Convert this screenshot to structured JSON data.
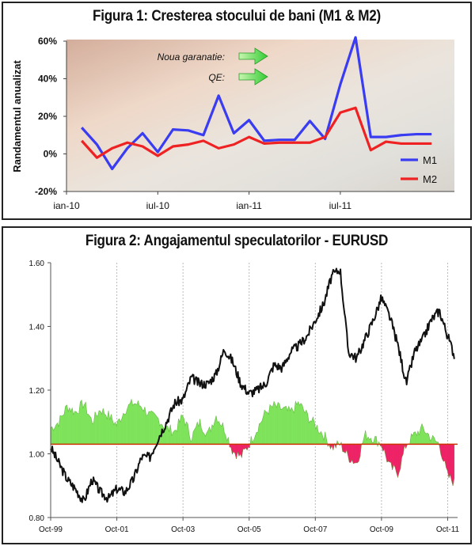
{
  "chart_data": [
    {
      "type": "line",
      "title": "Figura 1:  Cresterea stocului de bani (M1 & M2)",
      "ylabel": "Randamentul anualizat",
      "xlabel": "",
      "ylim": [
        -20,
        60
      ],
      "yticks": [
        "60%",
        "40%",
        "20%",
        "0%",
        "-20%"
      ],
      "ytick_values": [
        60,
        40,
        20,
        0,
        -20
      ],
      "xticks": [
        "ian-10",
        "iul-10",
        "ian-11",
        "iul-11"
      ],
      "xtick_values": [
        0,
        6,
        12,
        18
      ],
      "x": [
        1,
        2,
        3,
        4,
        5,
        6,
        7,
        8,
        9,
        10,
        11,
        12,
        13,
        14,
        15,
        16,
        17,
        18,
        19,
        20,
        21,
        22,
        23,
        24
      ],
      "series": [
        {
          "name": "M1",
          "color": "#3a3cf2",
          "values": [
            14,
            5,
            -8,
            3,
            11,
            1,
            13,
            12.5,
            10,
            31,
            11,
            18,
            7,
            7.5,
            7.5,
            17.5,
            8,
            37,
            62,
            9,
            9,
            10,
            10.5,
            10.5
          ]
        },
        {
          "name": "M2",
          "color": "#ee2222",
          "values": [
            7,
            -2,
            3,
            6,
            4,
            -1,
            4,
            5,
            7,
            3,
            5,
            9,
            5.5,
            6,
            6,
            6,
            9,
            22,
            24.5,
            2,
            6.5,
            5.5,
            5.5,
            5.5
          ]
        }
      ],
      "legend_position": "bottom-right",
      "annotations": [
        "Noua garanatie:",
        "QE:"
      ],
      "grid": false
    },
    {
      "type": "line",
      "title": "Figura 2:  Angajamentul speculatorilor - EURUSD",
      "xlabel": "",
      "ylabel": "",
      "ylim": [
        0.8,
        1.6
      ],
      "yticks": [
        "1.60",
        "1.40",
        "1.20",
        "1.00",
        "0.80"
      ],
      "ytick_values": [
        1.6,
        1.4,
        1.2,
        1.0,
        0.8
      ],
      "xlim": [
        1999.75,
        2012.05
      ],
      "xticks": [
        "Oct-99",
        "Oct-01",
        "Oct-03",
        "Oct-05",
        "Oct-07",
        "Oct-09",
        "Oct-11"
      ],
      "xtick_values": [
        1999.75,
        2001.75,
        2003.75,
        2005.75,
        2007.75,
        2009.75,
        2011.75
      ],
      "baseline": 1.03,
      "grid": true,
      "eurusd": {
        "color": "#111111",
        "x": [
          1999.75,
          2000.0,
          2000.25,
          2000.5,
          2000.75,
          2001.0,
          2001.25,
          2001.5,
          2001.75,
          2002.0,
          2002.25,
          2002.5,
          2002.75,
          2003.0,
          2003.25,
          2003.5,
          2003.75,
          2004.0,
          2004.25,
          2004.5,
          2004.75,
          2005.0,
          2005.25,
          2005.5,
          2005.75,
          2006.0,
          2006.25,
          2006.5,
          2006.75,
          2007.0,
          2007.25,
          2007.5,
          2007.75,
          2008.0,
          2008.25,
          2008.5,
          2008.75,
          2009.0,
          2009.25,
          2009.5,
          2009.75,
          2010.0,
          2010.25,
          2010.5,
          2010.75,
          2011.0,
          2011.25,
          2011.5,
          2011.75,
          2011.95
        ],
        "values": [
          1.02,
          0.97,
          0.92,
          0.89,
          0.85,
          0.92,
          0.88,
          0.86,
          0.89,
          0.88,
          0.92,
          0.99,
          0.99,
          1.05,
          1.1,
          1.16,
          1.17,
          1.24,
          1.22,
          1.22,
          1.25,
          1.33,
          1.29,
          1.22,
          1.19,
          1.2,
          1.22,
          1.28,
          1.27,
          1.32,
          1.34,
          1.37,
          1.42,
          1.47,
          1.56,
          1.58,
          1.32,
          1.3,
          1.36,
          1.42,
          1.49,
          1.43,
          1.34,
          1.22,
          1.32,
          1.36,
          1.42,
          1.45,
          1.37,
          1.31
        ]
      },
      "positioning": {
        "color_long": "#7ee35a",
        "color_short": "#ee2266",
        "x": [
          1999.75,
          2000.0,
          2000.25,
          2000.5,
          2000.75,
          2001.0,
          2001.25,
          2001.5,
          2001.75,
          2002.0,
          2002.25,
          2002.5,
          2002.75,
          2003.0,
          2003.25,
          2003.5,
          2003.75,
          2004.0,
          2004.25,
          2004.5,
          2004.75,
          2005.0,
          2005.25,
          2005.5,
          2005.75,
          2006.0,
          2006.25,
          2006.5,
          2006.75,
          2007.0,
          2007.25,
          2007.5,
          2007.75,
          2008.0,
          2008.25,
          2008.5,
          2008.75,
          2009.0,
          2009.25,
          2009.5,
          2009.75,
          2010.0,
          2010.25,
          2010.5,
          2010.75,
          2011.0,
          2011.25,
          2011.5,
          2011.75,
          2011.95
        ],
        "values": [
          1.08,
          1.1,
          1.15,
          1.13,
          1.16,
          1.1,
          1.14,
          1.12,
          1.09,
          1.14,
          1.16,
          1.15,
          1.12,
          1.11,
          1.08,
          1.07,
          1.12,
          1.05,
          1.1,
          1.06,
          1.12,
          1.08,
          1.01,
          0.99,
          1.03,
          1.08,
          1.13,
          1.15,
          1.14,
          1.13,
          1.16,
          1.12,
          1.09,
          1.06,
          1.02,
          1.03,
          0.99,
          0.97,
          1.06,
          1.05,
          1.03,
          0.96,
          0.94,
          1.03,
          1.06,
          1.08,
          1.05,
          1.03,
          0.93,
          0.91
        ]
      }
    }
  ]
}
